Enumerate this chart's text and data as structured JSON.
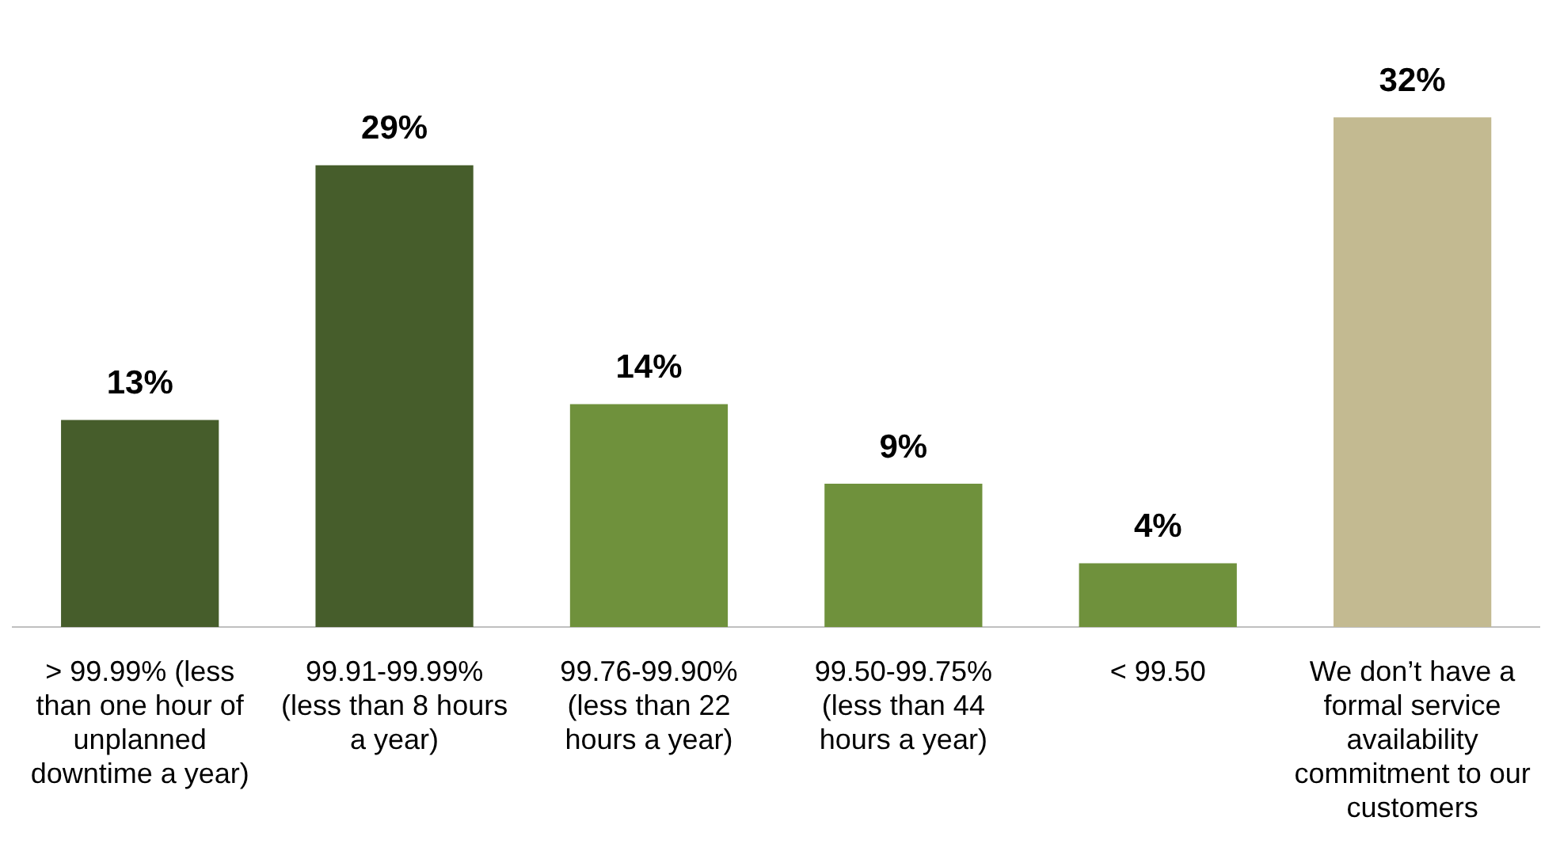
{
  "chart_data": {
    "type": "bar",
    "categories": [
      "> 99.99% (less than one hour of unplanned downtime a year)",
      "99.91-99.99% (less than 8 hours a year)",
      "99.76-99.90% (less than 22 hours a year)",
      "99.50-99.75% (less than 44 hours a year)",
      "< 99.50",
      "We don’t have a formal service availability commitment to our customers"
    ],
    "values": [
      13,
      29,
      14,
      9,
      4,
      32
    ],
    "colors": [
      "#465d2b",
      "#465d2b",
      "#6f913c",
      "#6f913c",
      "#6f913c",
      "#c3ba91"
    ],
    "value_labels": [
      "13%",
      "29%",
      "14%",
      "9%",
      "4%",
      "32%"
    ],
    "grid": false
  }
}
